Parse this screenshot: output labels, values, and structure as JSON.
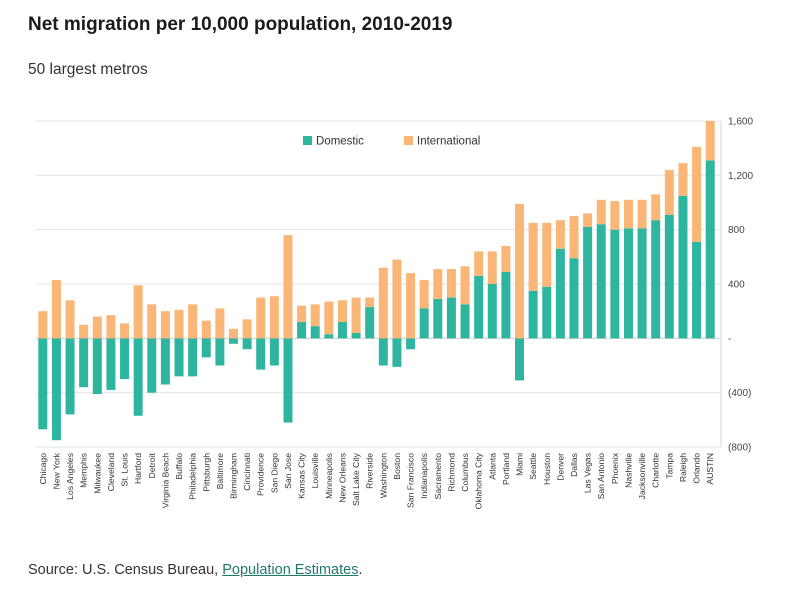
{
  "title": "Net migration per 10,000 population, 2010-2019",
  "subtitle": "50 largest metros",
  "source": {
    "prefix": "Source: U.S. Census Bureau, ",
    "link_text": "Population Estimates",
    "suffix": "."
  },
  "chart_data": {
    "type": "bar",
    "stacked": true,
    "title": "Net migration per 10,000 population, 2010-2019",
    "subtitle": "50 largest metros",
    "xlabel": "",
    "ylabel": "",
    "ylim": [
      -800,
      1600
    ],
    "yticks": [
      1600,
      1200,
      800,
      400,
      0,
      -400,
      -800
    ],
    "ytick_labels": [
      "1,600",
      "1,200",
      "800",
      "400",
      "-",
      "(400)",
      "(800)"
    ],
    "grid": true,
    "legend_position": "top-center",
    "categories": [
      "Chicago",
      "New York",
      "Los Angeles",
      "Memphis",
      "Milwaukee",
      "Cleveland",
      "St. Louis",
      "Hartford",
      "Detroit",
      "Virginia Beach",
      "Buffalo",
      "Philadelphia",
      "Pittsburgh",
      "Baltimore",
      "Birmingham",
      "Cincinnati",
      "Providence",
      "San Diego",
      "San Jose",
      "Kansas City",
      "Louisville",
      "Minneapolis",
      "New Orleans",
      "Salt Lake City",
      "Riverside",
      "Washington",
      "Boston",
      "San Francisco",
      "Indianapolis",
      "Sacramento",
      "Richmond",
      "Columbus",
      "Oklahoma City",
      "Atlanta",
      "Portland",
      "Miami",
      "Seattle",
      "Houston",
      "Denver",
      "Dallas",
      "Las Vegas",
      "San Antonio",
      "Phoenix",
      "Nashville",
      "Jacksonville",
      "Charlotte",
      "Tampa",
      "Raleigh",
      "Orlando",
      "AUSTIN"
    ],
    "series": [
      {
        "name": "Domestic",
        "color": "#2db5a0",
        "values": [
          -670,
          -750,
          -560,
          -360,
          -410,
          -380,
          -300,
          -570,
          -400,
          -340,
          -280,
          -280,
          -140,
          -200,
          -40,
          -80,
          -230,
          -200,
          -620,
          120,
          90,
          30,
          120,
          40,
          230,
          -200,
          -210,
          -80,
          220,
          290,
          300,
          250,
          460,
          400,
          490,
          -310,
          350,
          380,
          660,
          590,
          820,
          840,
          800,
          810,
          810,
          870,
          910,
          1050,
          710,
          1310
        ]
      },
      {
        "name": "International",
        "color": "#f9b677",
        "values": [
          200,
          430,
          280,
          100,
          160,
          170,
          110,
          390,
          250,
          200,
          210,
          250,
          130,
          220,
          70,
          140,
          300,
          310,
          760,
          120,
          160,
          240,
          160,
          260,
          70,
          520,
          580,
          480,
          210,
          220,
          210,
          280,
          180,
          240,
          190,
          990,
          500,
          470,
          210,
          310,
          100,
          180,
          210,
          210,
          210,
          190,
          330,
          240,
          700,
          290
        ]
      }
    ]
  }
}
